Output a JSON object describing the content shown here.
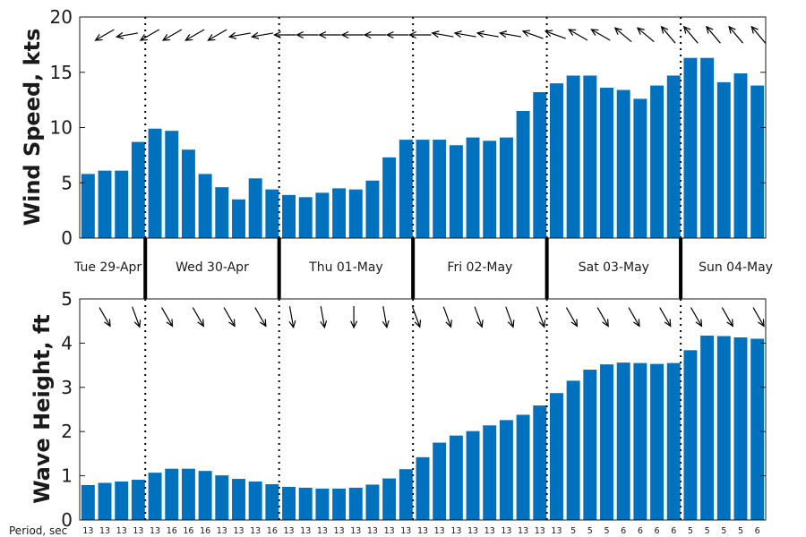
{
  "colors": {
    "bar": "#0072bd",
    "axis": "#1a1a1a",
    "arrow": "#000000"
  },
  "chart_data": [
    {
      "type": "bar",
      "ylabel": "Wind Speed, kts",
      "ylim": [
        0,
        20
      ],
      "yticks": [
        0,
        5,
        10,
        15,
        20
      ],
      "days": [
        "Tue 29-Apr",
        "Wed 30-Apr",
        "Thu 01-May",
        "Fri 02-May",
        "Sat 03-May",
        "Sun 04-May"
      ],
      "values": [
        5.8,
        6.1,
        6.1,
        8.7,
        9.9,
        9.7,
        8.0,
        5.8,
        4.6,
        3.5,
        5.4,
        4.4,
        3.9,
        3.7,
        4.1,
        4.5,
        4.4,
        5.2,
        7.3,
        8.9,
        8.9,
        8.9,
        8.4,
        9.1,
        8.8,
        9.1,
        11.5,
        13.2,
        14.0,
        14.7,
        14.7,
        13.6,
        13.4,
        12.6,
        13.8,
        14.7,
        16.3,
        16.3,
        14.1,
        14.9,
        13.8
      ],
      "direction_arrows_deg": [
        240,
        260,
        240,
        240,
        240,
        240,
        260,
        260,
        270,
        270,
        270,
        270,
        270,
        270,
        270,
        280,
        280,
        280,
        280,
        290,
        290,
        300,
        300,
        310,
        310,
        320,
        320,
        320,
        320,
        320
      ],
      "grid": false
    },
    {
      "type": "bar",
      "ylabel": "Wave Height, ft",
      "ylim": [
        0,
        5
      ],
      "yticks": [
        0,
        1,
        2,
        3,
        4,
        5
      ],
      "values": [
        0.79,
        0.84,
        0.87,
        0.91,
        1.07,
        1.16,
        1.16,
        1.11,
        1.01,
        0.93,
        0.87,
        0.81,
        0.75,
        0.73,
        0.71,
        0.71,
        0.73,
        0.8,
        0.94,
        1.15,
        1.42,
        1.75,
        1.91,
        2.01,
        2.14,
        2.26,
        2.38,
        2.59,
        2.87,
        3.15,
        3.4,
        3.52,
        3.56,
        3.55,
        3.53,
        3.55,
        3.84,
        4.17,
        4.16,
        4.13,
        4.1
      ],
      "direction_arrows_deg": [
        150,
        160,
        150,
        150,
        150,
        150,
        170,
        170,
        180,
        170,
        160,
        160,
        160,
        160,
        160,
        150,
        150,
        150,
        150,
        150,
        150,
        150
      ],
      "period_label": "Period, sec",
      "periods": [
        "13",
        "13",
        "13",
        "13",
        "13",
        "16",
        "16",
        "16",
        "13",
        "13",
        "13",
        "16",
        "13",
        "13",
        "13",
        "13",
        "13",
        "13",
        "13",
        "13",
        "13",
        "13",
        "13",
        "13",
        "13",
        "13",
        "13",
        "13",
        "13",
        "5",
        "5",
        "5",
        "6",
        "6",
        "6",
        "6",
        "5",
        "5",
        "5",
        "5",
        "6"
      ],
      "grid": false
    }
  ]
}
